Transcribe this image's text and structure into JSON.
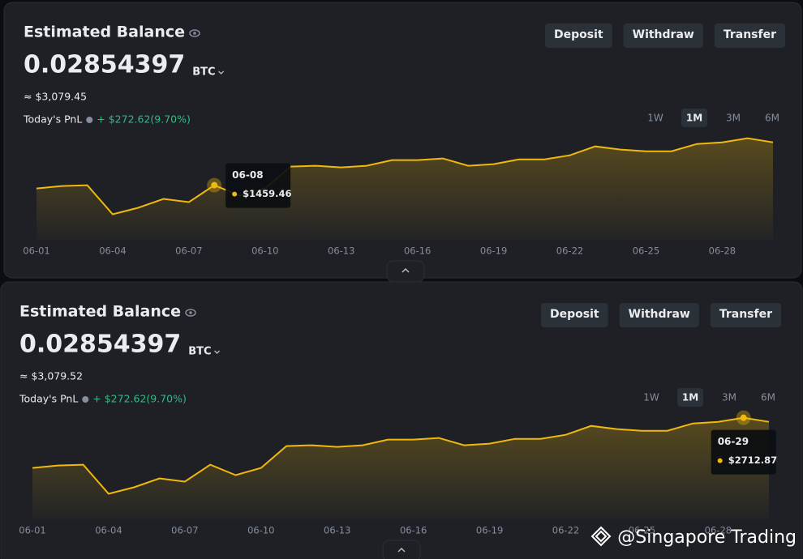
{
  "panels": [
    {
      "title": "Estimated Balance",
      "balance": "0.02854397",
      "unit": "BTC",
      "usd": "≈ $3,079.45",
      "pnl_label": "Today's PnL",
      "pnl_value": "+ $272.62(9.70%)",
      "buttons": [
        "Deposit",
        "Withdraw",
        "Transfer"
      ],
      "ranges": [
        "1W",
        "1M",
        "3M",
        "6M"
      ],
      "active_range": "1M",
      "tooltip": {
        "x": "06-08",
        "value_label": "$1459.46"
      }
    },
    {
      "title": "Estimated Balance",
      "balance": "0.02854397",
      "unit": "BTC",
      "usd": "≈ $3,079.52",
      "pnl_label": "Today's PnL",
      "pnl_value": "+ $272.62(9.70%)",
      "buttons": [
        "Deposit",
        "Withdraw",
        "Transfer"
      ],
      "ranges": [
        "1W",
        "1M",
        "3M",
        "6M"
      ],
      "active_range": "1M",
      "tooltip": {
        "x": "06-29",
        "value_label": "$2712.87"
      }
    }
  ],
  "chart": {
    "type": "line",
    "color": "#f0b90b",
    "x": [
      "06-01",
      "06-02",
      "06-03",
      "06-04",
      "06-05",
      "06-06",
      "06-07",
      "06-08",
      "06-09",
      "06-10",
      "06-11",
      "06-12",
      "06-13",
      "06-14",
      "06-15",
      "06-16",
      "06-17",
      "06-18",
      "06-19",
      "06-20",
      "06-21",
      "06-22",
      "06-23",
      "06-24",
      "06-25",
      "06-26",
      "06-27",
      "06-28",
      "06-29",
      "06-30"
    ],
    "values": [
      1373,
      1438,
      1459,
      682,
      855,
      1092,
      1006,
      1459.46,
      1179,
      1373,
      1956,
      1978,
      1934,
      1978,
      2129,
      2129,
      2172,
      1978,
      2021,
      2150,
      2150,
      2258,
      2496,
      2410,
      2366,
      2366,
      2561,
      2604,
      2712.87,
      2604
    ],
    "xticks": [
      "06-01",
      "06-04",
      "06-07",
      "06-10",
      "06-13",
      "06-16",
      "06-19",
      "06-22",
      "06-25",
      "06-28"
    ],
    "ylim": [
      0,
      2900
    ]
  },
  "watermark": "@Singapore Trading"
}
